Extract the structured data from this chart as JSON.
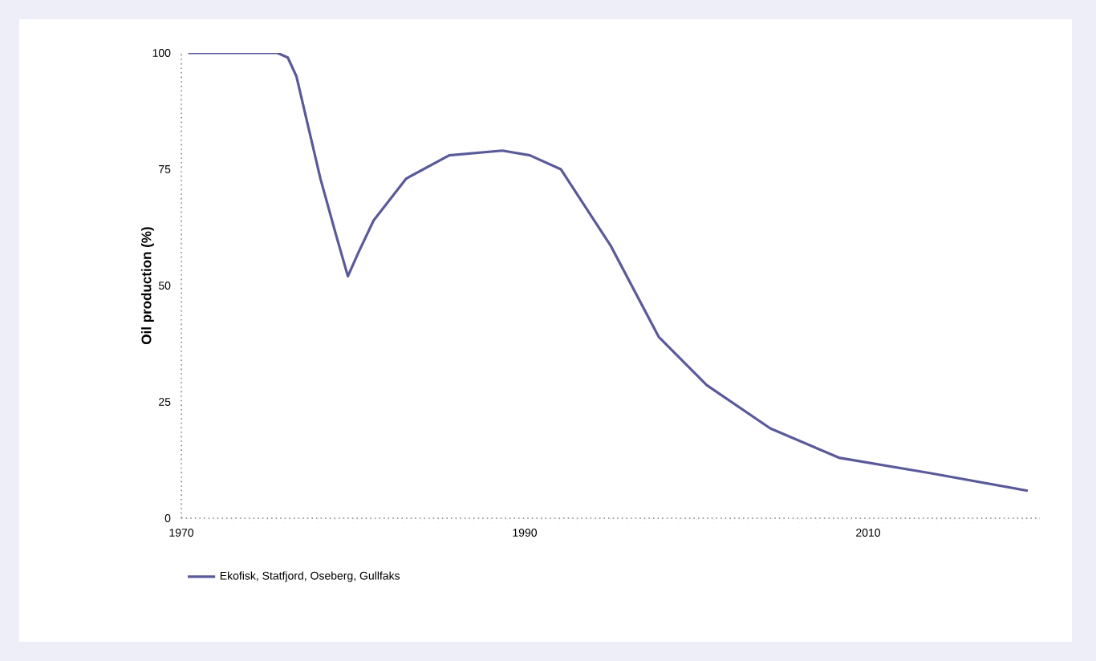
{
  "chart_data": {
    "type": "line",
    "ylabel": "Oil production (%)",
    "x": [
      1970.4,
      1975.6,
      1976.2,
      1976.7,
      1978.1,
      1979.0,
      1979.7,
      1980.3,
      1981.2,
      1983.1,
      1985.6,
      1988.7,
      1990.3,
      1992.1,
      1995.0,
      1997.8,
      2000.6,
      2004.3,
      2008.3,
      2013.6,
      2019.3
    ],
    "series": [
      {
        "name": "Ekofisk, Statfjord, Oseberg, Gullfaks",
        "color": "#5a5a9a",
        "values": [
          100,
          100,
          99,
          95,
          73,
          61,
          52,
          57,
          64,
          73,
          78,
          79,
          78,
          75,
          58.6,
          39,
          28.6,
          19.3,
          13,
          9.7,
          5.9
        ]
      }
    ],
    "xlim": [
      1970,
      2020
    ],
    "xticks": [
      1970,
      {
        "value": 1971,
        "label": null
      },
      {
        "value": 1972,
        "label": null
      },
      {
        "value": 1973,
        "label": null
      },
      {
        "value": 1974,
        "label": null
      },
      {
        "value": 1975,
        "label": null
      },
      {
        "value": 1976,
        "label": null
      },
      {
        "value": 1977,
        "label": null
      },
      {
        "value": 1978,
        "label": null
      },
      {
        "value": 1979,
        "label": null
      },
      {
        "value": 1980,
        "label": null
      },
      {
        "value": 1981,
        "label": null
      },
      {
        "value": 1982,
        "label": null
      },
      {
        "value": 1983,
        "label": null
      },
      {
        "value": 1984,
        "label": null
      },
      {
        "value": 1985,
        "label": null
      },
      {
        "value": 1986,
        "label": null
      },
      {
        "value": 1987,
        "label": null
      },
      {
        "value": 1988,
        "label": null
      },
      {
        "value": 1989,
        "label": null
      },
      1990,
      {
        "value": 1991,
        "label": null
      },
      {
        "value": 1992,
        "label": null
      },
      {
        "value": 1993,
        "label": null
      },
      {
        "value": 1994,
        "label": null
      },
      {
        "value": 1995,
        "label": null
      },
      {
        "value": 1996,
        "label": null
      },
      {
        "value": 1997,
        "label": null
      },
      {
        "value": 1998,
        "label": null
      },
      {
        "value": 1999,
        "label": null
      },
      {
        "value": 2000,
        "label": null
      },
      {
        "value": 2001,
        "label": null
      },
      {
        "value": 2002,
        "label": null
      },
      {
        "value": 2003,
        "label": null
      },
      {
        "value": 2004,
        "label": null
      },
      {
        "value": 2005,
        "label": null
      },
      {
        "value": 2006,
        "label": null
      },
      {
        "value": 2007,
        "label": null
      },
      {
        "value": 2008,
        "label": null
      },
      {
        "value": 2009,
        "label": null
      },
      2010,
      {
        "value": 2011,
        "label": null
      },
      {
        "value": 2012,
        "label": null
      },
      {
        "value": 2013,
        "label": null
      },
      {
        "value": 2014,
        "label": null
      },
      {
        "value": 2015,
        "label": null
      },
      {
        "value": 2016,
        "label": null
      },
      {
        "value": 2017,
        "label": null
      },
      {
        "value": 2018,
        "label": null
      },
      {
        "value": 2019,
        "label": null
      },
      {
        "value": 2020,
        "label": null
      }
    ],
    "ylim": [
      0,
      100
    ],
    "yticks": [
      0,
      25,
      50,
      75,
      100
    ],
    "grid": false,
    "legend": "bottom",
    "marker": "none",
    "line_style": "solid"
  }
}
